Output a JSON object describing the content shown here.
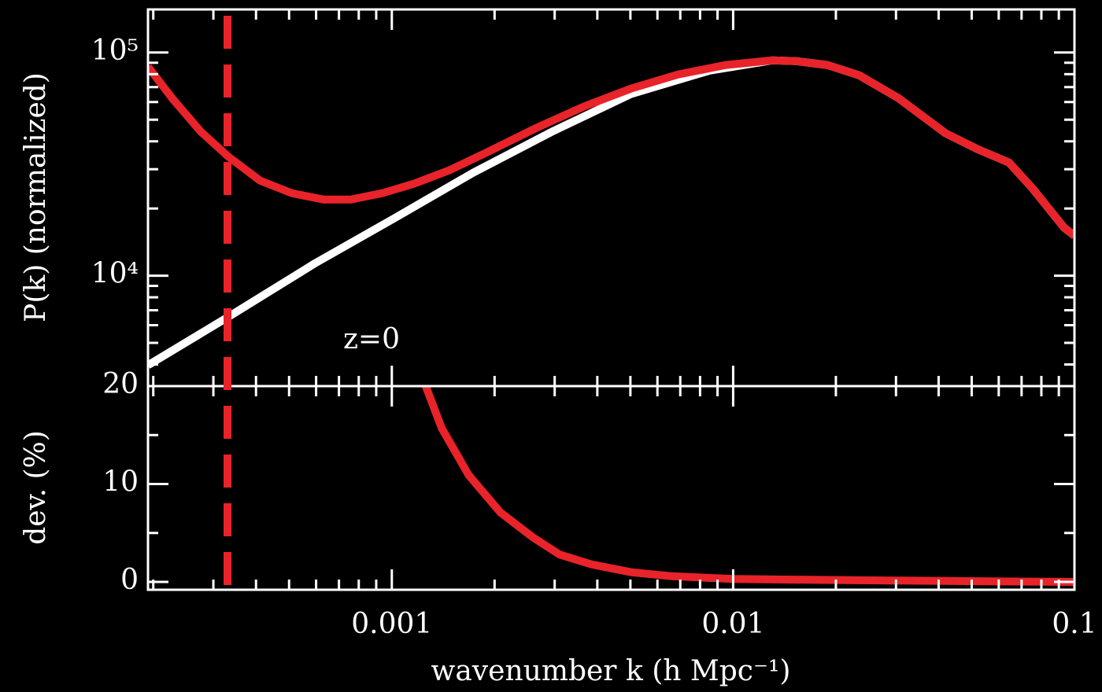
{
  "chart_data": {
    "type": "line",
    "xlog": true,
    "xlim": [
      0.000193,
      0.1
    ],
    "xticks": [
      0.001,
      0.01,
      0.1
    ],
    "xminorticks": [
      0.0002,
      0.0003,
      0.0004,
      0.0005,
      0.0006,
      0.0007,
      0.0008,
      0.0009,
      0.002,
      0.003,
      0.004,
      0.005,
      0.006,
      0.007,
      0.008,
      0.009,
      0.02,
      0.03,
      0.04,
      0.05,
      0.06,
      0.07,
      0.08,
      0.09
    ],
    "xlabel": "wavenumber k (h Mpc⁻¹)",
    "vline": {
      "x": 0.00033,
      "color": "#e8232a",
      "dashed": true
    },
    "panels": [
      {
        "ylabel": "P(k) (normalized)",
        "ylog": true,
        "ylim": [
          3200,
          156000
        ],
        "yticks": [
          {
            "value": 10000,
            "label": "10⁴"
          },
          {
            "value": 100000,
            "label": "10⁵"
          }
        ],
        "yminorticks": [
          4000,
          5000,
          6000,
          7000,
          8000,
          9000,
          20000,
          30000,
          40000,
          50000,
          60000,
          70000,
          80000,
          90000
        ],
        "annotation": {
          "text": "z=0",
          "color": "#e8232a"
        },
        "series": [
          {
            "color": "#ffffff",
            "x": [
              0.000193,
              0.000333,
              0.000597,
              0.001016,
              0.00173,
              0.00294,
              0.00501,
              0.00853,
              0.013,
              0.0153,
              0.0189,
              0.0234,
              0.0305,
              0.042,
              0.052,
              0.0643,
              0.0754,
              0.0933,
              0.1
            ],
            "values": [
              3968,
              6558,
              11390,
              18070,
              28920,
              44110,
              65090,
              82990,
              92230,
              91490,
              87850,
              79060,
              62480,
              43390,
              36890,
              32140,
              24590,
              16400,
              15120
            ]
          },
          {
            "color": "#e8232a",
            "x": [
              0.000193,
              0.000229,
              0.000276,
              0.000333,
              0.000411,
              0.000509,
              0.00063,
              0.000759,
              0.000938,
              0.00116,
              0.00147,
              0.00192,
              0.00265,
              0.00364,
              0.00501,
              0.00689,
              0.00948,
              0.013,
              0.0153,
              0.0189,
              0.0234,
              0.0305,
              0.042,
              0.052,
              0.0643,
              0.0754,
              0.0933,
              0.1
            ],
            "values": [
              86460,
              61460,
              44110,
              34020,
              26680,
              23430,
              21950,
              21950,
              23430,
              25820,
              29630,
              36000,
              45920,
              57150,
              68870,
              79700,
              87850,
              92230,
              91490,
              87850,
              79060,
              62480,
              43390,
              36890,
              32140,
              24590,
              16400,
              15120
            ]
          }
        ]
      },
      {
        "ylabel": "dev. (%)",
        "ylog": false,
        "ylim": [
          -0.8,
          20
        ],
        "yticks": [
          0,
          10,
          20
        ],
        "yminorticks": [
          5,
          15
        ],
        "series": [
          {
            "color": "#e8232a",
            "x": [
              0.001257,
              0.0014,
              0.00168,
              0.00208,
              0.00258,
              0.0031,
              0.00384,
              0.00501,
              0.00653,
              0.01,
              0.0189,
              0.042,
              0.1
            ],
            "values": [
              20,
              15.7,
              10.9,
              7.1,
              4.6,
              2.8,
              1.8,
              1.0,
              0.6,
              0.3,
              0.2,
              0.1,
              0
            ]
          }
        ]
      }
    ]
  }
}
